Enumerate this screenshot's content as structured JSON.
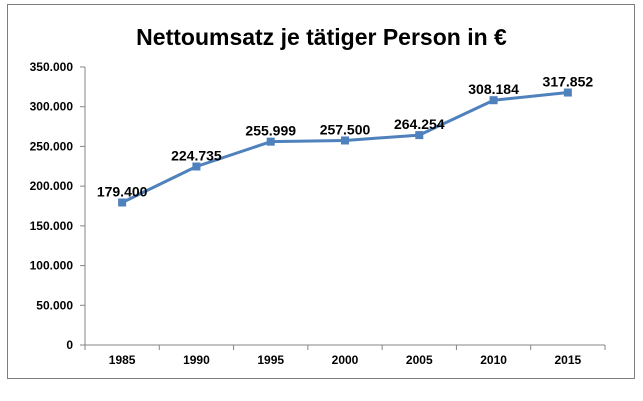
{
  "chart_data": {
    "type": "line",
    "title": "Nettoumsatz je tätiger Person in €",
    "xlabel": "",
    "ylabel": "",
    "categories": [
      "1985",
      "1990",
      "1995",
      "2000",
      "2005",
      "2010",
      "2015"
    ],
    "series": [
      {
        "values": [
          179400,
          224735,
          255999,
          257500,
          264254,
          308184,
          317852
        ],
        "data_labels": [
          "179.400",
          "224.735",
          "255.999",
          "257.500",
          "264.254",
          "308.184",
          "317.852"
        ],
        "color": "#4f81bd",
        "marker": "square"
      }
    ],
    "ylim": [
      0,
      350000
    ],
    "y_ticks": [
      0,
      50000,
      100000,
      150000,
      200000,
      250000,
      300000,
      350000
    ],
    "y_tick_labels": [
      "0",
      "50.000",
      "100.000",
      "150.000",
      "200.000",
      "250.000",
      "300.000",
      "350.000"
    ],
    "grid": false,
    "legend": "none"
  }
}
